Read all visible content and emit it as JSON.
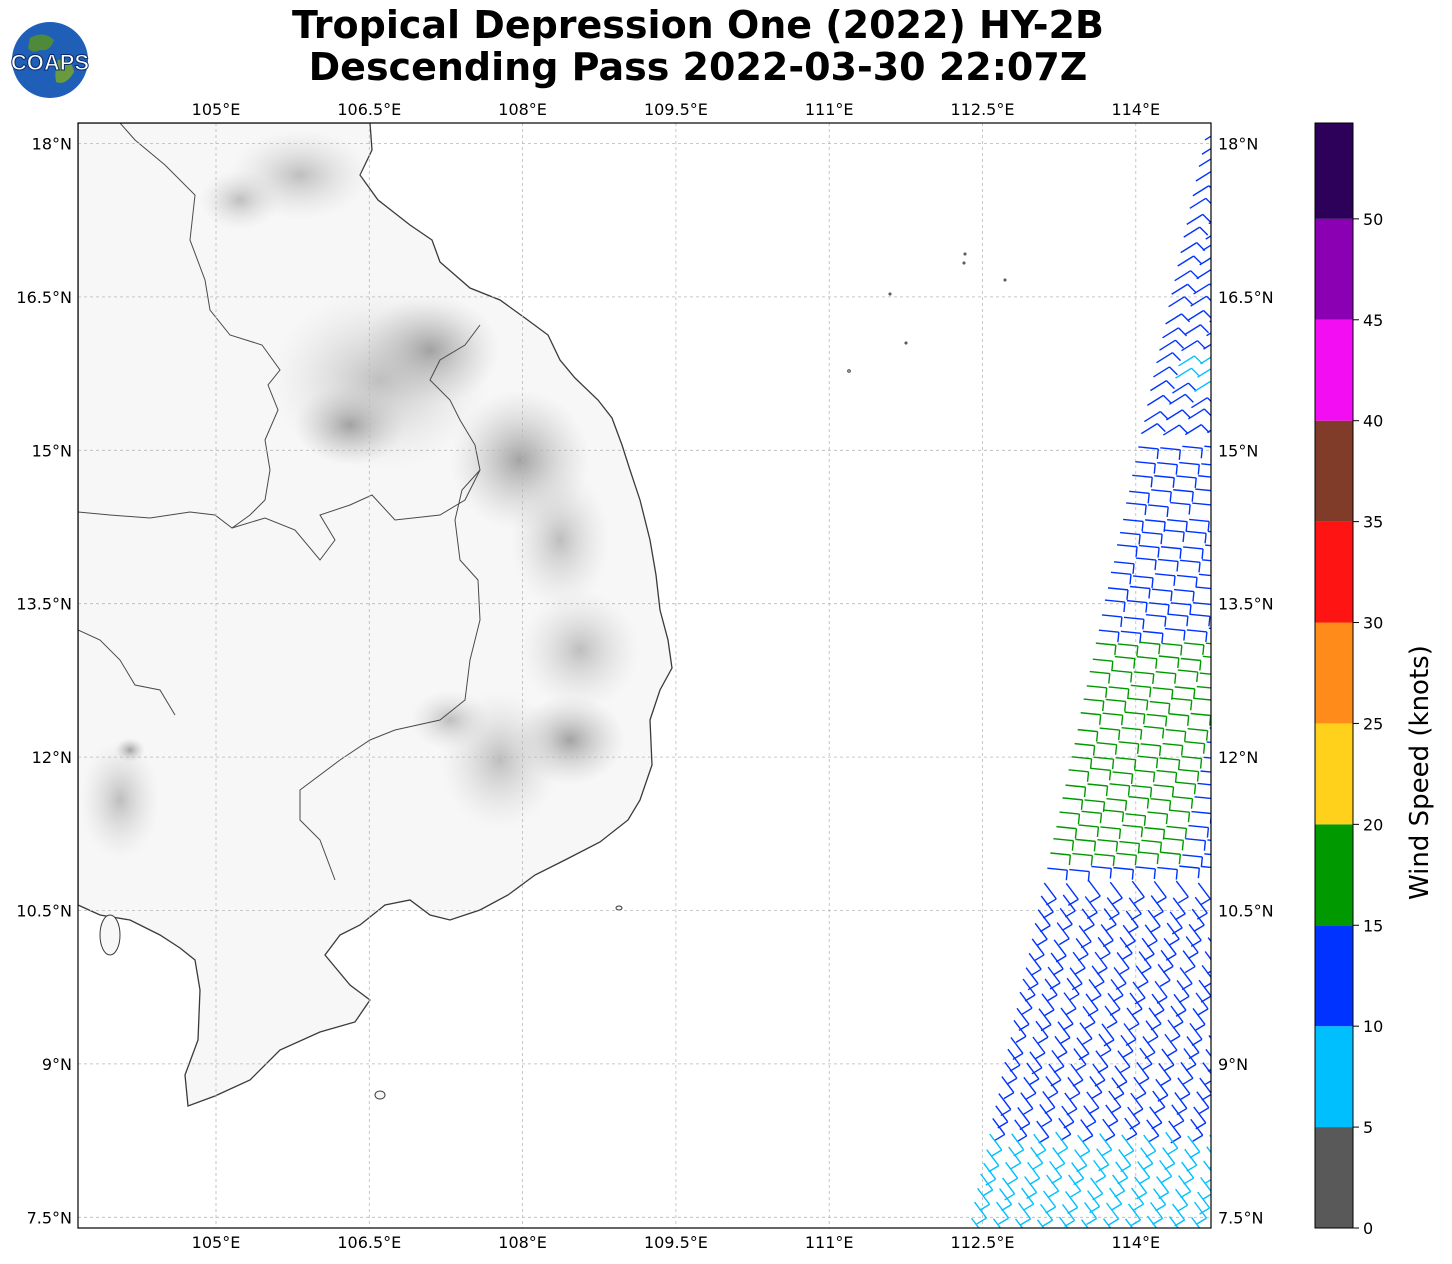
{
  "title": {
    "line1": "Tropical Depression One (2022) HY-2B",
    "line2": "Descending Pass 2022-03-30 22:07Z"
  },
  "logo": {
    "text": "COAPS",
    "icon": "globe-logo-icon"
  },
  "map": {
    "lon_ticks": [
      "105°E",
      "106.5°E",
      "108°E",
      "109.5°E",
      "111°E",
      "112.5°E",
      "114°E"
    ],
    "lat_ticks": [
      "18°N",
      "16.5°N",
      "15°N",
      "13.5°N",
      "12°N",
      "10.5°N",
      "9°N",
      "7.5°N"
    ],
    "gridlines": true,
    "land_shading": "grayscale-elevation",
    "wind_barbs_region": "east-edge swath",
    "colors": {
      "coast": "#333333",
      "grid": "#b8b8b8"
    }
  },
  "colorbar": {
    "label": "Wind Speed (knots)",
    "ticks": [
      "0",
      "5",
      "10",
      "15",
      "20",
      "25",
      "30",
      "35",
      "40",
      "45",
      "50"
    ],
    "colors": [
      "#595959",
      "#00bfff",
      "#0033ff",
      "#009900",
      "#ffd11a",
      "#ff8c1a",
      "#ff1414",
      "#803c28",
      "#f20df2",
      "#8c00b3",
      "#2d0059"
    ]
  }
}
